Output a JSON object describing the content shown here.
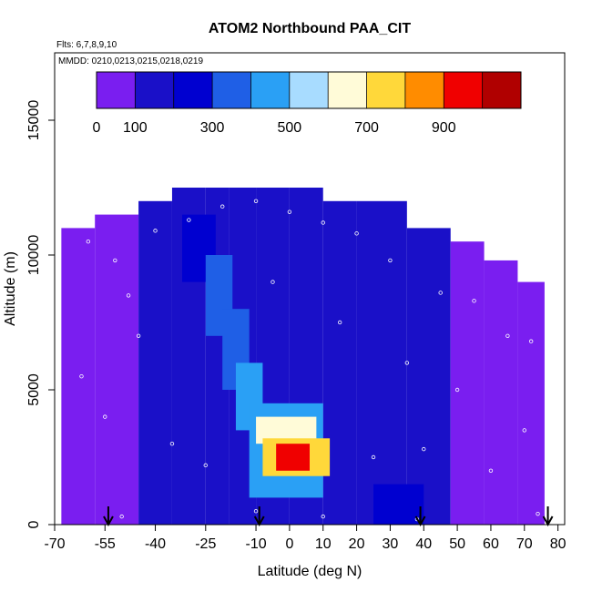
{
  "chart_data": {
    "type": "heatmap",
    "title": "ATOM2 Northbound PAA_CIT",
    "subtitle_flights": "Flts: 6,7,8,9,10",
    "subtitle_dates": "MMDD: 0210,0213,0215,0218,0219",
    "xlabel": "Latitude (deg N)",
    "ylabel": "Altitude (m)",
    "xlim": [
      -70,
      82
    ],
    "ylim": [
      0,
      17500
    ],
    "x_ticks": [
      -70,
      -55,
      -40,
      -25,
      -10,
      0,
      10,
      20,
      30,
      40,
      50,
      60,
      70,
      80
    ],
    "y_ticks": [
      0,
      5000,
      10000,
      15000
    ],
    "colorbar": {
      "range": [
        0,
        1100
      ],
      "tick_values": [
        0,
        100,
        300,
        500,
        700,
        900
      ],
      "colors": [
        "#7a1ef0",
        "#1a10c8",
        "#0000d0",
        "#1f5fe6",
        "#2aa0f5",
        "#a8dcff",
        "#fffbd8",
        "#ffd83a",
        "#ff8c00",
        "#f00000",
        "#b00000"
      ]
    },
    "cells": [
      {
        "lat": [
          -68,
          -58
        ],
        "alt": [
          0,
          11000
        ],
        "value": 40
      },
      {
        "lat": [
          -58,
          -45
        ],
        "alt": [
          0,
          11500
        ],
        "value": 60
      },
      {
        "lat": [
          -45,
          -35
        ],
        "alt": [
          0,
          12000
        ],
        "value": 120
      },
      {
        "lat": [
          -35,
          -25
        ],
        "alt": [
          0,
          12500
        ],
        "value": 150
      },
      {
        "lat": [
          -25,
          -18
        ],
        "alt": [
          0,
          12500
        ],
        "value": 180
      },
      {
        "lat": [
          -18,
          -10
        ],
        "alt": [
          0,
          12500
        ],
        "value": 160
      },
      {
        "lat": [
          -10,
          0
        ],
        "alt": [
          0,
          12500
        ],
        "value": 140
      },
      {
        "lat": [
          0,
          10
        ],
        "alt": [
          0,
          12500
        ],
        "value": 150
      },
      {
        "lat": [
          10,
          20
        ],
        "alt": [
          0,
          12000
        ],
        "value": 170
      },
      {
        "lat": [
          20,
          35
        ],
        "alt": [
          0,
          12000
        ],
        "value": 120
      },
      {
        "lat": [
          35,
          48
        ],
        "alt": [
          0,
          11000
        ],
        "value": 110
      },
      {
        "lat": [
          48,
          58
        ],
        "alt": [
          0,
          10500
        ],
        "value": 80
      },
      {
        "lat": [
          58,
          68
        ],
        "alt": [
          0,
          9800
        ],
        "value": 60
      },
      {
        "lat": [
          68,
          76
        ],
        "alt": [
          0,
          9000
        ],
        "value": 45
      },
      {
        "lat": [
          -32,
          -22
        ],
        "alt": [
          9000,
          11500
        ],
        "value": 240
      },
      {
        "lat": [
          -25,
          -17
        ],
        "alt": [
          7000,
          10000
        ],
        "value": 320
      },
      {
        "lat": [
          -20,
          -12
        ],
        "alt": [
          5000,
          8000
        ],
        "value": 380
      },
      {
        "lat": [
          -16,
          -8
        ],
        "alt": [
          3500,
          6000
        ],
        "value": 420
      },
      {
        "lat": [
          -12,
          10
        ],
        "alt": [
          1000,
          4500
        ],
        "value": 480
      },
      {
        "lat": [
          -10,
          8
        ],
        "alt": [
          3000,
          4000
        ],
        "value": 620
      },
      {
        "lat": [
          -8,
          12
        ],
        "alt": [
          1800,
          3200
        ],
        "value": 780
      },
      {
        "lat": [
          -4,
          6
        ],
        "alt": [
          2000,
          3000
        ],
        "value": 990
      },
      {
        "lat": [
          25,
          40
        ],
        "alt": [
          0,
          1500
        ],
        "value": 260
      }
    ],
    "flight_track_markers": [
      {
        "lat": -60,
        "alt": 10500
      },
      {
        "lat": -52,
        "alt": 9800
      },
      {
        "lat": -48,
        "alt": 8500
      },
      {
        "lat": -45,
        "alt": 7000
      },
      {
        "lat": -40,
        "alt": 10900
      },
      {
        "lat": -30,
        "alt": 11300
      },
      {
        "lat": -20,
        "alt": 11800
      },
      {
        "lat": -10,
        "alt": 12000
      },
      {
        "lat": 0,
        "alt": 11600
      },
      {
        "lat": 10,
        "alt": 11200
      },
      {
        "lat": 20,
        "alt": 10800
      },
      {
        "lat": 30,
        "alt": 9800
      },
      {
        "lat": 45,
        "alt": 8600
      },
      {
        "lat": 55,
        "alt": 8300
      },
      {
        "lat": 65,
        "alt": 7000
      },
      {
        "lat": 72,
        "alt": 6800
      },
      {
        "lat": -62,
        "alt": 5500
      },
      {
        "lat": -55,
        "alt": 4000
      },
      {
        "lat": -35,
        "alt": 3000
      },
      {
        "lat": -25,
        "alt": 2200
      },
      {
        "lat": 25,
        "alt": 2500
      },
      {
        "lat": 40,
        "alt": 2800
      },
      {
        "lat": 60,
        "alt": 2000
      },
      {
        "lat": 70,
        "alt": 3500
      },
      {
        "lat": 35,
        "alt": 6000
      },
      {
        "lat": 50,
        "alt": 5000
      },
      {
        "lat": 15,
        "alt": 7500
      },
      {
        "lat": -5,
        "alt": 9000
      },
      {
        "lat": -50,
        "alt": 300
      },
      {
        "lat": -10,
        "alt": 500
      },
      {
        "lat": 10,
        "alt": 300
      },
      {
        "lat": 38,
        "alt": 200
      },
      {
        "lat": 74,
        "alt": 400
      }
    ],
    "profile_arrows": [
      {
        "lat": -54
      },
      {
        "lat": -9
      },
      {
        "lat": 39
      },
      {
        "lat": 77
      }
    ],
    "grid": false,
    "legend": "colorbar-top-inset"
  }
}
